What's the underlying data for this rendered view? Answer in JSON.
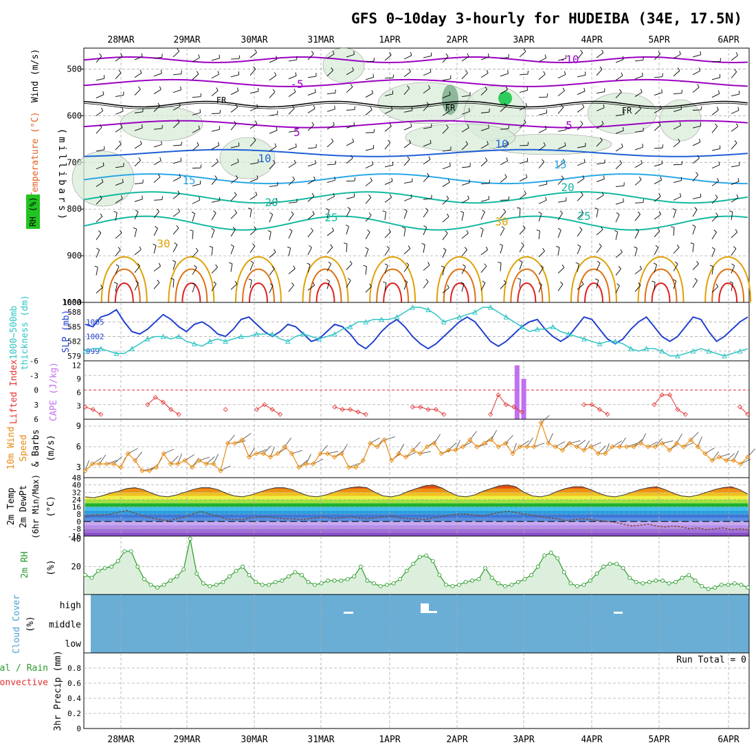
{
  "title": "GFS 0~10day 3-hourly for HUDEIBA (34E, 17.5N)",
  "dates": [
    "28MAR",
    "29MAR",
    "30MAR",
    "31MAR",
    "1APR",
    "2APR",
    "3APR",
    "4APR",
    "5APR",
    "6APR"
  ],
  "colors": {
    "grid": "#aaaaaa",
    "purple": "#9a00c0",
    "blue": "#1e5fd6",
    "lightblue": "#2aa7e6",
    "teal": "#12b8a0",
    "orange": "#e0a000",
    "red": "#e02020",
    "slp": "#1f3fd0",
    "thick": "#2ec4c4",
    "cape": "#c070f0",
    "li": "#e03030",
    "wind10": "#e88a10",
    "rh2m": "#2a9a2a",
    "cloud": "#6aaed6"
  },
  "panels": {
    "upper": {
      "ylabel": "(millibars)",
      "labels": [
        "Wind (m/s)",
        "Temperature (°C)",
        "RH (%)"
      ],
      "yticks": [
        "500",
        "600",
        "700",
        "800",
        "900",
        "1000"
      ],
      "contour_labels": [
        "-10",
        "-5",
        "FR",
        "5",
        "10",
        "15",
        "20",
        "25",
        "30",
        "10",
        "30",
        "30"
      ]
    },
    "slp": {
      "labels": [
        "SLP (mb)",
        "1000~500mb",
        "thickness (dm)"
      ],
      "left_ticks": [
        "588",
        "585",
        "582",
        "579"
      ],
      "right_ticks": [
        "1005",
        "1002",
        "999"
      ],
      "top_tick": "1000"
    },
    "cape": {
      "labels": [
        "Lifted Index",
        "CAPE (J/kg)"
      ],
      "li_ticks": [
        "-6",
        "-3",
        "0",
        "3",
        "6"
      ],
      "cape_ticks": [
        "12",
        "9",
        "6",
        "3"
      ]
    },
    "wind": {
      "labels": [
        "10m Wind",
        "Speed",
        "& Barbs",
        "(m/s)"
      ],
      "yticks": [
        "9",
        "6",
        "3"
      ]
    },
    "temp": {
      "labels": [
        "2m Temp",
        "2m DewPt",
        "(6hr Min/Max)",
        "(°C)"
      ],
      "yticks": [
        "48",
        "40",
        "32",
        "24",
        "16",
        "8",
        "0",
        "-8",
        "-16"
      ]
    },
    "rh": {
      "labels": [
        "2m RH",
        "(%)"
      ],
      "yticks": [
        "40",
        "20"
      ]
    },
    "cloud": {
      "labels": [
        "Cloud Cover",
        "(%)"
      ],
      "levels": [
        "high",
        "middle",
        "low"
      ]
    },
    "precip": {
      "labels": [
        "Total / Rain",
        "Convective",
        "3hr Precip (mm)"
      ],
      "yticks": [
        "0.8",
        "0.6",
        "0.4",
        "0.2",
        "0"
      ],
      "run_total": "Run Total = 0"
    }
  },
  "chart_data": [
    {
      "type": "line",
      "title": "SLP (mb)",
      "x_unit": "days from 28MAR 00Z",
      "ylim": [
        997,
        1009
      ],
      "series": [
        {
          "name": "SLP (mb)",
          "values": [
            1004.5,
            1004,
            1006,
            1006.5,
            1007.5,
            1005,
            1003,
            1002.5,
            1003.5,
            1005,
            1006.5,
            1005.5,
            1004,
            1003,
            1004.5,
            1005,
            1004,
            1002.5,
            1002,
            1003.5,
            1005.5,
            1006,
            1004.5,
            1003,
            1002,
            1003,
            1004.5,
            1004,
            1002.5,
            1001,
            1001.5,
            1003,
            1004.5,
            1004,
            1002.5,
            1000.5,
            999.5,
            1001,
            1003,
            1004.5,
            1005.5,
            1004,
            1002,
            1000.5,
            999.5,
            1000.5,
            1002,
            1003.5,
            1005,
            1006,
            1005,
            1003,
            1001,
            1000,
            1001,
            1002.5,
            1004,
            1005,
            1005.5,
            1003.5,
            1002,
            1001,
            1002,
            1004,
            1006,
            1005.5,
            1003.5,
            1001.5,
            1000.5,
            1001.5,
            1003.5,
            1005,
            1006,
            1004,
            1002,
            1001,
            1002,
            1004,
            1006,
            1005.5,
            1003,
            1001,
            1002,
            1003.5,
            1005,
            1006
          ]
        }
      ]
    },
    {
      "type": "line",
      "title": "1000~500mb thickness (dm)",
      "x_unit": "days from 28MAR 00Z",
      "ylim": [
        578,
        590
      ],
      "series": [
        {
          "name": "thickness (dm)",
          "values": [
            580,
            580.5,
            580.5,
            580,
            579.5,
            579.5,
            580.5,
            581.5,
            582.5,
            583,
            583,
            582.5,
            583,
            582,
            581.5,
            581,
            582,
            582.5,
            582,
            582.5,
            583,
            583,
            583.5,
            583.5,
            583.5,
            582.5,
            582,
            583,
            583.5,
            583,
            582.5,
            583,
            583.5,
            584.5,
            585,
            586,
            586,
            586.5,
            586.5,
            586.5,
            587,
            588,
            589,
            589,
            588.5,
            587.5,
            586,
            586.5,
            587,
            587.5,
            588,
            589,
            589,
            588,
            587,
            586,
            585,
            584,
            584.5,
            584.5,
            585,
            584,
            583.5,
            583,
            582.5,
            582,
            581.5,
            582,
            582,
            581.5,
            580.5,
            580,
            580.5,
            580.5,
            580,
            579,
            579,
            579.5,
            580,
            580.5,
            580,
            579.5,
            579,
            579.5,
            580,
            580.5
          ]
        }
      ]
    },
    {
      "type": "bar",
      "title": "CAPE (J/kg)",
      "x": [
        6.4,
        6.5
      ],
      "values": [
        12,
        9
      ],
      "ylim": [
        0,
        13
      ]
    },
    {
      "type": "line",
      "title": "Lifted Index",
      "x_unit": "days from 28MAR 00Z",
      "ylim": [
        -6,
        6
      ],
      "series": [
        {
          "name": "Lifted Index",
          "values": [
            3.5,
            4,
            5,
            null,
            null,
            null,
            null,
            null,
            3,
            1.5,
            2.5,
            4,
            5,
            null,
            null,
            null,
            null,
            null,
            4,
            null,
            null,
            null,
            4,
            3,
            4,
            5,
            null,
            null,
            null,
            null,
            null,
            null,
            3.5,
            4,
            4,
            4.5,
            5,
            null,
            null,
            null,
            null,
            null,
            3.5,
            3.5,
            4,
            4,
            5,
            null,
            null,
            null,
            null,
            null,
            5,
            1,
            3,
            3.5,
            4.5,
            null,
            null,
            null,
            null,
            null,
            null,
            null,
            3,
            3,
            4,
            5,
            null,
            null,
            null,
            null,
            null,
            3,
            1,
            1,
            4,
            5,
            null,
            null,
            null,
            null,
            null,
            null,
            3.5,
            5
          ]
        }
      ]
    },
    {
      "type": "line",
      "title": "10m Wind Speed (m/s)",
      "x_unit": "days from 28MAR 00Z",
      "ylim": [
        1.5,
        10
      ],
      "series": [
        {
          "name": "Speed",
          "values": [
            2.5,
            3.5,
            3.5,
            3.5,
            3.5,
            3,
            5,
            4,
            2.5,
            2.5,
            3,
            5,
            3.5,
            3.5,
            4,
            3,
            4,
            3.5,
            3.5,
            2.5,
            6.5,
            6.5,
            7,
            4.5,
            5,
            5,
            4.5,
            5,
            6,
            5,
            3,
            3.5,
            3.5,
            5,
            5,
            4.5,
            5,
            3,
            3,
            4,
            6.5,
            6,
            7,
            4,
            5,
            4.5,
            5.5,
            5,
            6,
            6.5,
            5,
            5.5,
            5.5,
            6,
            7,
            6,
            6.5,
            7,
            6,
            6.5,
            5,
            6,
            6,
            6,
            9.5,
            6.5,
            6,
            5.5,
            6.5,
            6,
            5.5,
            6,
            5,
            5,
            6,
            6,
            6,
            6,
            6.5,
            6,
            6,
            6.5,
            5.5,
            6.5,
            6,
            7,
            6,
            5,
            4,
            4.5,
            4,
            4,
            3.5,
            4.5
          ]
        }
      ]
    },
    {
      "type": "line",
      "title": "2m Temp / DewPt (°C)",
      "x_unit": "days from 28MAR 00Z",
      "ylim": [
        -16,
        48
      ],
      "series": [
        {
          "name": "2m Temp",
          "values": [
            27,
            26,
            28,
            31,
            33,
            36,
            37,
            35,
            31,
            28,
            27,
            29,
            32,
            35,
            37,
            37,
            35,
            31,
            28,
            27,
            29,
            32,
            35,
            37,
            37,
            35,
            31,
            28,
            27,
            29,
            32,
            35,
            37,
            38,
            37,
            32,
            28,
            27,
            29,
            33,
            36,
            39,
            40,
            37,
            32,
            28,
            27,
            29,
            33,
            36,
            39,
            40,
            38,
            32,
            28,
            27,
            29,
            33,
            36,
            38,
            38,
            35,
            31,
            28,
            27,
            29,
            32,
            35,
            37,
            38,
            35,
            31,
            28,
            27,
            29,
            32,
            35,
            37,
            38,
            35,
            30
          ]
        },
        {
          "name": "2m DewPt",
          "values": [
            5,
            7,
            7,
            8,
            10,
            12,
            9,
            6,
            4,
            2,
            1,
            3,
            5,
            8,
            11,
            8,
            6,
            3,
            2,
            2,
            4,
            5,
            5,
            4,
            3,
            3,
            2,
            3,
            4,
            5,
            3,
            4,
            5,
            4,
            3,
            4,
            5,
            6,
            4,
            3,
            3,
            2,
            4,
            5,
            7,
            8,
            8,
            7,
            6,
            8,
            10,
            11,
            10,
            8,
            7,
            5,
            4,
            3,
            1,
            2,
            3,
            2,
            1,
            0,
            -1,
            -3,
            -5,
            -4,
            -3,
            -5,
            -6,
            -5,
            -6,
            -8,
            -7,
            -9,
            -8,
            -7,
            -9,
            -8,
            -9
          ]
        }
      ]
    },
    {
      "type": "area",
      "title": "2m RH (%)",
      "x_unit": "days from 28MAR 00Z",
      "ylim": [
        0,
        40
      ],
      "series": [
        {
          "name": "2m RH",
          "values": [
            14,
            12,
            17,
            19,
            20,
            24,
            31,
            31,
            20,
            11,
            7,
            5,
            7,
            10,
            13,
            18,
            40,
            15,
            8,
            6,
            7,
            9,
            13,
            17,
            20,
            14,
            9,
            7,
            7,
            9,
            10,
            13,
            16,
            14,
            9,
            7,
            8,
            10,
            10,
            10,
            11,
            13,
            20,
            10,
            8,
            6,
            7,
            8,
            11,
            17,
            22,
            27,
            28,
            24,
            14,
            7,
            6,
            7,
            9,
            10,
            11,
            19,
            12,
            8,
            6,
            7,
            9,
            11,
            14,
            20,
            28,
            30,
            26,
            16,
            8,
            6,
            7,
            10,
            15,
            20,
            22,
            22,
            19,
            12,
            9,
            8,
            9,
            10,
            10,
            8,
            9,
            12,
            14,
            10,
            6,
            4,
            5,
            7,
            7,
            8,
            7,
            5
          ]
        }
      ]
    },
    {
      "type": "bar",
      "title": "Cloud Cover (%)",
      "categories": [
        "high",
        "middle",
        "low"
      ],
      "values": [
        2,
        0,
        0
      ]
    },
    {
      "type": "bar",
      "title": "3hr Precip (mm)",
      "values": [
        0
      ],
      "ylim": [
        0,
        1
      ]
    }
  ]
}
